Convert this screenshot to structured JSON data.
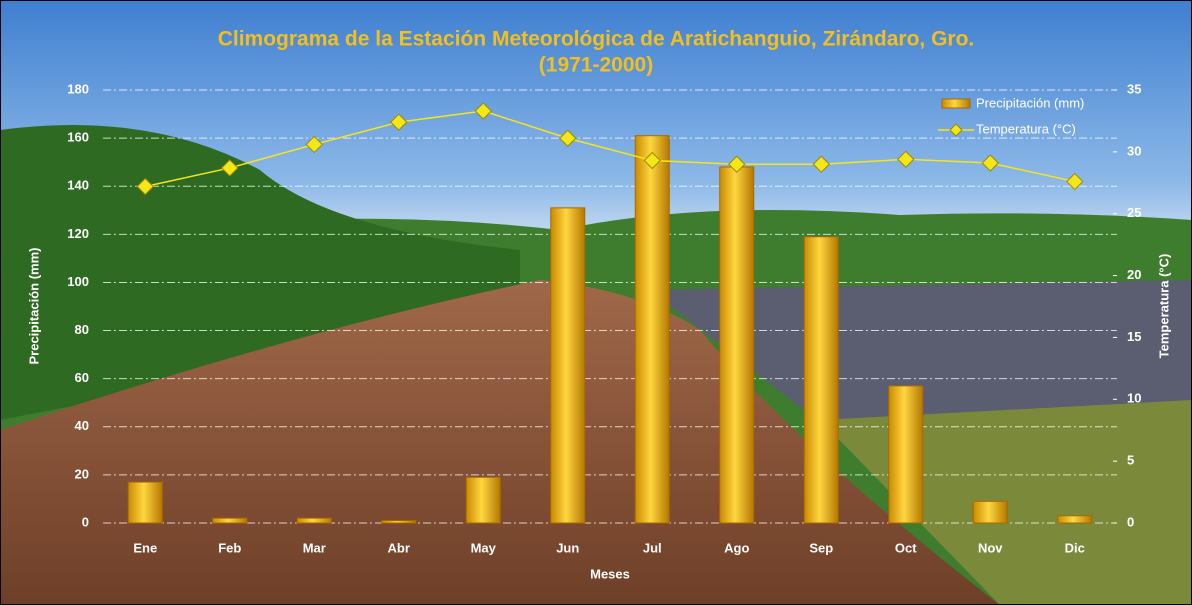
{
  "chart_data": {
    "type": "bar",
    "title": "Climograma de la Estación Meteorológica de Aratichanguio, Zirándaro, Gro.",
    "subtitle": "(1971-2000)",
    "x_label": "Meses",
    "y_label": "Precipitación (mm)",
    "y2_label": "Temperatura (°C)",
    "categories": [
      "Ene",
      "Feb",
      "Mar",
      "Abr",
      "May",
      "Jun",
      "Jul",
      "Ago",
      "Sep",
      "Oct",
      "Nov",
      "Dic"
    ],
    "series": [
      {
        "name": "Precipitación (mm)",
        "type": "bar",
        "color": "#f2b90c",
        "values": [
          17,
          2,
          2,
          1,
          19,
          131,
          161,
          148,
          119,
          57,
          9,
          3
        ]
      },
      {
        "name": "Temperatura (°C)",
        "type": "line",
        "axis": "y2",
        "color": "#f5e61a",
        "values": [
          27.2,
          28.7,
          30.6,
          32.4,
          33.3,
          31.1,
          29.3,
          29.0,
          29.0,
          29.4,
          29.1,
          27.6
        ]
      }
    ],
    "ylim": [
      0,
      180
    ],
    "yticks": [
      0,
      20,
      40,
      60,
      80,
      100,
      120,
      140,
      160,
      180
    ],
    "y2lim": [
      0,
      35
    ],
    "y2ticks": [
      0,
      5,
      10,
      15,
      20,
      25,
      30,
      35
    ],
    "grid": true,
    "legend": "top-right"
  }
}
